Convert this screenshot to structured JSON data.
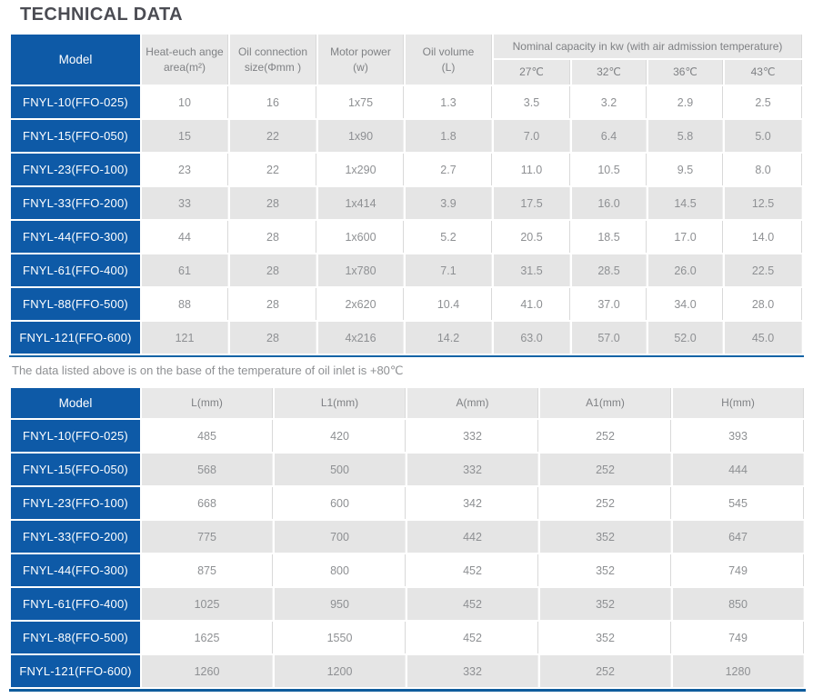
{
  "page": {
    "title": "TECHNICAL DATA",
    "note": "The data listed above is on the base of the temperature of oil inlet is +80℃"
  },
  "colors": {
    "accent_blue": "#0e5aa7",
    "table1_bottom_border": "#1263a5",
    "table2_bottom_border": "#0f5c9c",
    "header_gray": "#e8e8e8",
    "alt_row_gray": "#e5e5e5",
    "data_text_gray": "#8e9093",
    "title_text": "#4b4c53"
  },
  "table1": {
    "model_header": "Model",
    "columns": [
      "Heat-euch ange\narea(m²)",
      "Oil connection\nsize(Φmm )",
      "Motor power\n(w)",
      "Oil volume\n(L)"
    ],
    "group_header": "Nominal capacity in kw (with air admission temperature)",
    "temp_columns": [
      "27℃",
      "32℃",
      "36℃",
      "43℃"
    ],
    "rows": [
      {
        "model": "FNYL-10(FFO-025)",
        "values": [
          "10",
          "16",
          "1x75",
          "1.3",
          "3.5",
          "3.2",
          "2.9",
          "2.5"
        ]
      },
      {
        "model": "FNYL-15(FFO-050)",
        "values": [
          "15",
          "22",
          "1x90",
          "1.8",
          "7.0",
          "6.4",
          "5.8",
          "5.0"
        ]
      },
      {
        "model": "FNYL-23(FFO-100)",
        "values": [
          "23",
          "22",
          "1x290",
          "2.7",
          "11.0",
          "10.5",
          "9.5",
          "8.0"
        ]
      },
      {
        "model": "FNYL-33(FFO-200)",
        "values": [
          "33",
          "28",
          "1x414",
          "3.9",
          "17.5",
          "16.0",
          "14.5",
          "12.5"
        ]
      },
      {
        "model": "FNYL-44(FFO-300)",
        "values": [
          "44",
          "28",
          "1x600",
          "5.2",
          "20.5",
          "18.5",
          "17.0",
          "14.0"
        ]
      },
      {
        "model": "FNYL-61(FFO-400)",
        "values": [
          "61",
          "28",
          "1x780",
          "7.1",
          "31.5",
          "28.5",
          "26.0",
          "22.5"
        ]
      },
      {
        "model": "FNYL-88(FFO-500)",
        "values": [
          "88",
          "28",
          "2x620",
          "10.4",
          "41.0",
          "37.0",
          "34.0",
          "28.0"
        ]
      },
      {
        "model": "FNYL-121(FFO-600)",
        "values": [
          "121",
          "28",
          "4x216",
          "14.2",
          "63.0",
          "57.0",
          "52.0",
          "45.0"
        ]
      }
    ]
  },
  "table2": {
    "model_header": "Model",
    "columns": [
      "L(mm)",
      "L1(mm)",
      "A(mm)",
      "A1(mm)",
      "H(mm)"
    ],
    "rows": [
      {
        "model": "FNYL-10(FFO-025)",
        "values": [
          "485",
          "420",
          "332",
          "252",
          "393"
        ]
      },
      {
        "model": "FNYL-15(FFO-050)",
        "values": [
          "568",
          "500",
          "332",
          "252",
          "444"
        ]
      },
      {
        "model": "FNYL-23(FFO-100)",
        "values": [
          "668",
          "600",
          "342",
          "252",
          "545"
        ]
      },
      {
        "model": "FNYL-33(FFO-200)",
        "values": [
          "775",
          "700",
          "442",
          "352",
          "647"
        ]
      },
      {
        "model": "FNYL-44(FFO-300)",
        "values": [
          "875",
          "800",
          "452",
          "352",
          "749"
        ]
      },
      {
        "model": "FNYL-61(FFO-400)",
        "values": [
          "1025",
          "950",
          "452",
          "352",
          "850"
        ]
      },
      {
        "model": "FNYL-88(FFO-500)",
        "values": [
          "1625",
          "1550",
          "452",
          "352",
          "749"
        ]
      },
      {
        "model": "FNYL-121(FFO-600)",
        "values": [
          "1260",
          "1200",
          "332",
          "252",
          "1280"
        ]
      }
    ]
  }
}
